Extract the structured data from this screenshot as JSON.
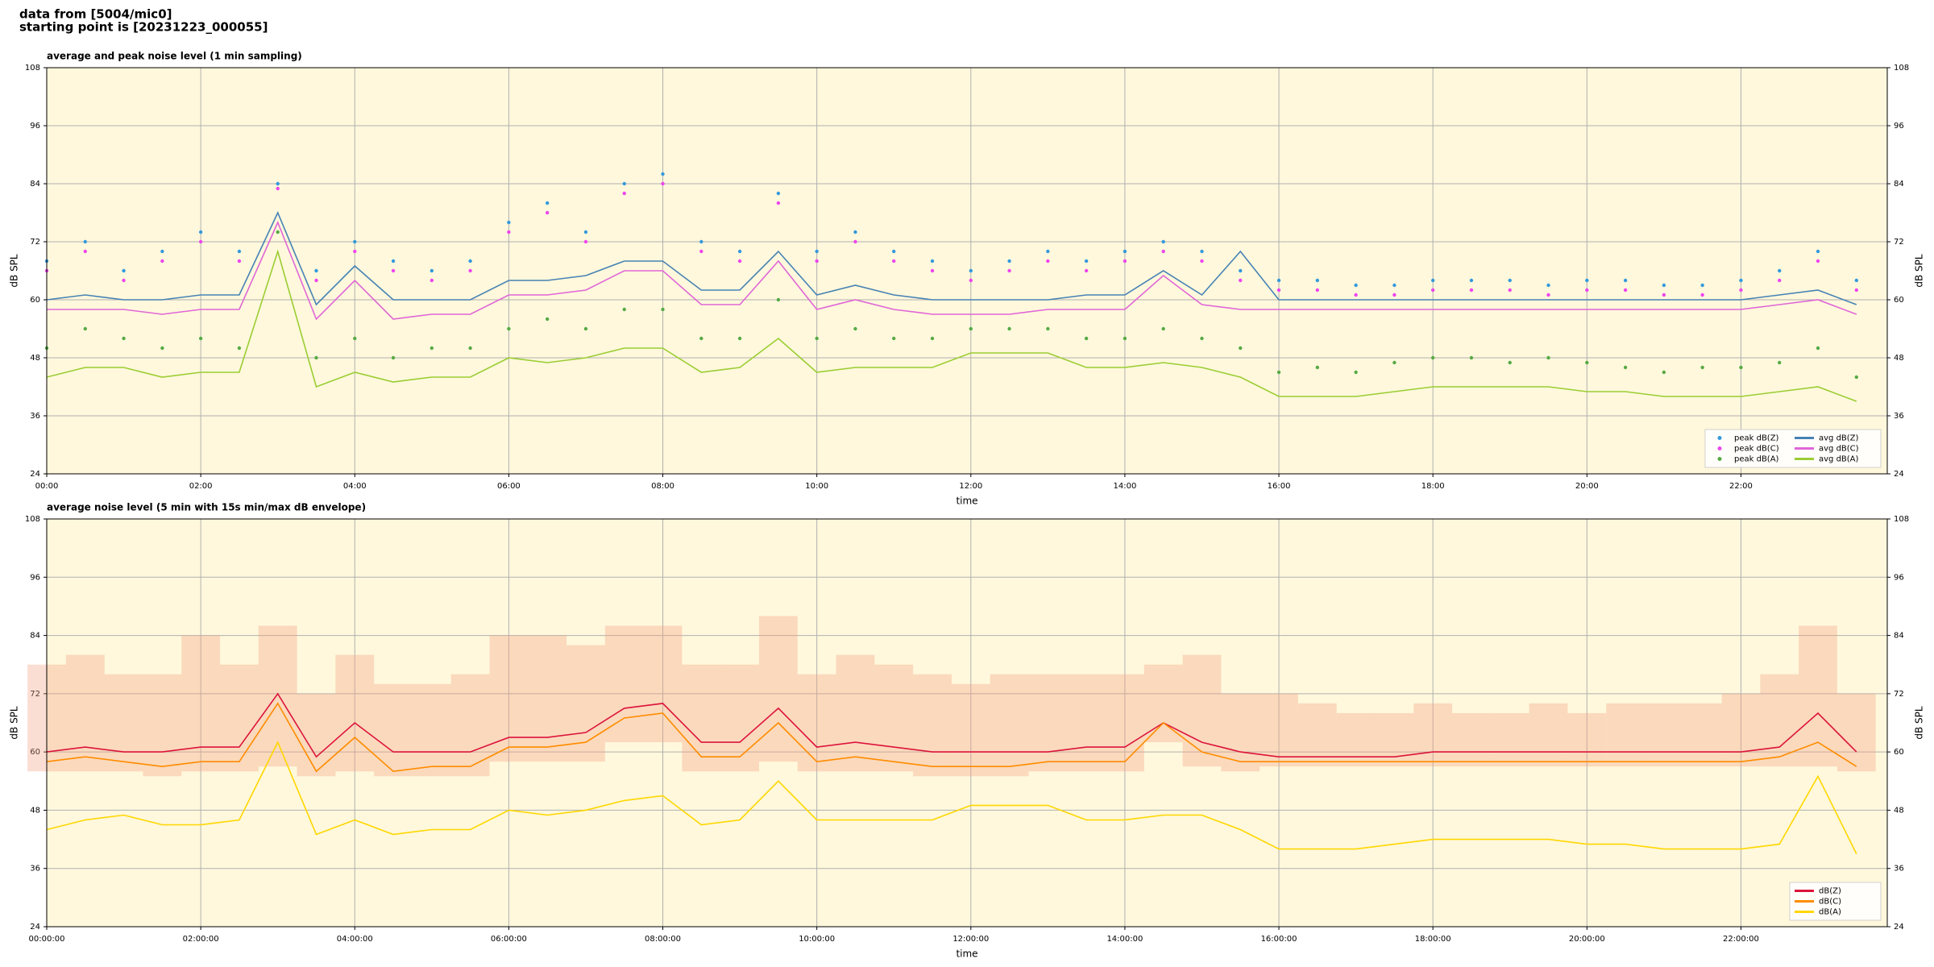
{
  "header": {
    "lines": [
      "data from [5004/mic0]",
      "starting point is [20231223_000055]"
    ]
  },
  "chart_data": [
    {
      "type": "line",
      "title": "average and peak noise level (1 min sampling)",
      "x_label": "time",
      "y_label": "dB SPL",
      "xlim": [
        0,
        23.9
      ],
      "ylim": [
        24,
        108
      ],
      "yticks": [
        24,
        36,
        48,
        60,
        72,
        84,
        96,
        108
      ],
      "xticks": [
        {
          "value": 0,
          "label": "00:00"
        },
        {
          "value": 2,
          "label": "02:00"
        },
        {
          "value": 4,
          "label": "04:00"
        },
        {
          "value": 6,
          "label": "06:00"
        },
        {
          "value": 8,
          "label": "08:00"
        },
        {
          "value": 10,
          "label": "10:00"
        },
        {
          "value": 12,
          "label": "12:00"
        },
        {
          "value": 14,
          "label": "14:00"
        },
        {
          "value": 16,
          "label": "16:00"
        },
        {
          "value": 18,
          "label": "18:00"
        },
        {
          "value": 20,
          "label": "20:00"
        },
        {
          "value": 22,
          "label": "22:00"
        }
      ],
      "grid": true,
      "background": "#fff8dc",
      "legend": "lower right",
      "legend_columns": 2,
      "x": [
        0,
        0.5,
        1,
        1.5,
        2,
        2.5,
        3,
        3.5,
        4,
        4.5,
        5,
        5.5,
        6,
        6.5,
        7,
        7.5,
        8,
        8.5,
        9,
        9.5,
        10,
        10.5,
        11,
        11.5,
        12,
        12.5,
        13,
        13.5,
        14,
        14.5,
        15,
        15.5,
        16,
        16.5,
        17,
        17.5,
        18,
        18.5,
        19,
        19.5,
        20,
        20.5,
        21,
        21.5,
        22,
        22.5,
        23,
        23.5
      ],
      "series": [
        {
          "name": "peak dB(Z)",
          "type": "scatter",
          "color": "#3399dd",
          "values": [
            68,
            72,
            66,
            70,
            74,
            70,
            84,
            66,
            72,
            68,
            66,
            68,
            76,
            80,
            74,
            84,
            86,
            72,
            70,
            82,
            70,
            74,
            70,
            68,
            66,
            68,
            70,
            68,
            70,
            72,
            70,
            66,
            64,
            64,
            63,
            63,
            64,
            64,
            64,
            63,
            64,
            64,
            63,
            63,
            64,
            66,
            70,
            64
          ]
        },
        {
          "name": "peak dB(C)",
          "type": "scatter",
          "color": "#ee44ee",
          "values": [
            66,
            70,
            64,
            68,
            72,
            68,
            83,
            64,
            70,
            66,
            64,
            66,
            74,
            78,
            72,
            82,
            84,
            70,
            68,
            80,
            68,
            72,
            68,
            66,
            64,
            66,
            68,
            66,
            68,
            70,
            68,
            64,
            62,
            62,
            61,
            61,
            62,
            62,
            62,
            61,
            62,
            62,
            61,
            61,
            62,
            64,
            68,
            62
          ]
        },
        {
          "name": "peak dB(A)",
          "type": "scatter",
          "color": "#55aa44",
          "values": [
            50,
            54,
            52,
            50,
            52,
            50,
            74,
            48,
            52,
            48,
            50,
            50,
            54,
            56,
            54,
            58,
            58,
            52,
            52,
            60,
            52,
            54,
            52,
            52,
            54,
            54,
            54,
            52,
            52,
            54,
            52,
            50,
            45,
            46,
            45,
            47,
            48,
            48,
            47,
            48,
            47,
            46,
            45,
            46,
            46,
            47,
            50,
            44
          ]
        },
        {
          "name": "avg dB(Z)",
          "type": "line",
          "color": "#4682b4",
          "values": [
            60,
            61,
            60,
            60,
            61,
            61,
            78,
            59,
            67,
            60,
            60,
            60,
            64,
            64,
            65,
            68,
            68,
            62,
            62,
            70,
            61,
            63,
            61,
            60,
            60,
            60,
            60,
            61,
            61,
            66,
            61,
            70,
            60,
            60,
            60,
            60,
            60,
            60,
            60,
            60,
            60,
            60,
            60,
            60,
            60,
            61,
            62,
            59
          ]
        },
        {
          "name": "avg dB(C)",
          "type": "line",
          "color": "#e066d8",
          "values": [
            58,
            58,
            58,
            57,
            58,
            58,
            76,
            56,
            64,
            56,
            57,
            57,
            61,
            61,
            62,
            66,
            66,
            59,
            59,
            68,
            58,
            60,
            58,
            57,
            57,
            57,
            58,
            58,
            58,
            65,
            59,
            58,
            58,
            58,
            58,
            58,
            58,
            58,
            58,
            58,
            58,
            58,
            58,
            58,
            58,
            59,
            60,
            57
          ]
        },
        {
          "name": "avg dB(A)",
          "type": "line",
          "color": "#9acd32",
          "values": [
            44,
            46,
            46,
            44,
            45,
            45,
            70,
            42,
            45,
            43,
            44,
            44,
            48,
            47,
            48,
            50,
            50,
            45,
            46,
            52,
            45,
            46,
            46,
            46,
            49,
            49,
            49,
            46,
            46,
            47,
            46,
            44,
            40,
            40,
            40,
            41,
            42,
            42,
            42,
            42,
            41,
            41,
            40,
            40,
            40,
            41,
            42,
            39
          ]
        }
      ]
    },
    {
      "type": "line",
      "title": "average noise level (5 min with 15s min/max dB envelope)",
      "x_label": "time",
      "y_label": "dB SPL",
      "xlim": [
        0,
        23.9
      ],
      "ylim": [
        24,
        108
      ],
      "yticks": [
        24,
        36,
        48,
        60,
        72,
        84,
        96,
        108
      ],
      "xticks": [
        {
          "value": 0,
          "label": "00:00:00"
        },
        {
          "value": 2,
          "label": "02:00:00"
        },
        {
          "value": 4,
          "label": "04:00:00"
        },
        {
          "value": 6,
          "label": "06:00:00"
        },
        {
          "value": 8,
          "label": "08:00:00"
        },
        {
          "value": 10,
          "label": "10:00:00"
        },
        {
          "value": 12,
          "label": "12:00:00"
        },
        {
          "value": 14,
          "label": "14:00:00"
        },
        {
          "value": 16,
          "label": "16:00:00"
        },
        {
          "value": 18,
          "label": "18:00:00"
        },
        {
          "value": 20,
          "label": "20:00:00"
        },
        {
          "value": 22,
          "label": "22:00:00"
        }
      ],
      "grid": true,
      "background": "#fff8dc",
      "legend": "lower right",
      "legend_columns": 1,
      "x": [
        0,
        0.5,
        1,
        1.5,
        2,
        2.5,
        3,
        3.5,
        4,
        4.5,
        5,
        5.5,
        6,
        6.5,
        7,
        7.5,
        8,
        8.5,
        9,
        9.5,
        10,
        10.5,
        11,
        11.5,
        12,
        12.5,
        13,
        13.5,
        14,
        14.5,
        15,
        15.5,
        16,
        16.5,
        17,
        17.5,
        18,
        18.5,
        19,
        19.5,
        20,
        20.5,
        21,
        21.5,
        22,
        22.5,
        23,
        23.5
      ],
      "envelope": {
        "color": "#f4a080",
        "low": [
          56,
          56,
          56,
          55,
          56,
          56,
          57,
          55,
          56,
          55,
          55,
          55,
          58,
          58,
          58,
          62,
          62,
          56,
          56,
          58,
          56,
          56,
          56,
          55,
          55,
          55,
          56,
          56,
          56,
          62,
          57,
          56,
          57,
          57,
          57,
          57,
          57,
          57,
          57,
          57,
          57,
          57,
          57,
          57,
          57,
          57,
          57,
          56
        ],
        "high": [
          78,
          80,
          76,
          76,
          84,
          78,
          86,
          72,
          80,
          74,
          74,
          76,
          84,
          84,
          82,
          86,
          86,
          78,
          78,
          88,
          76,
          80,
          78,
          76,
          74,
          76,
          76,
          76,
          76,
          78,
          80,
          72,
          72,
          70,
          68,
          68,
          70,
          68,
          68,
          70,
          68,
          70,
          70,
          70,
          72,
          76,
          86,
          72
        ]
      },
      "series": [
        {
          "name": "dB(Z)",
          "type": "line",
          "color": "#dc143c",
          "values": [
            60,
            61,
            60,
            60,
            61,
            61,
            72,
            59,
            66,
            60,
            60,
            60,
            63,
            63,
            64,
            69,
            70,
            62,
            62,
            69,
            61,
            62,
            61,
            60,
            60,
            60,
            60,
            61,
            61,
            66,
            62,
            60,
            59,
            59,
            59,
            59,
            60,
            60,
            60,
            60,
            60,
            60,
            60,
            60,
            60,
            61,
            68,
            60
          ]
        },
        {
          "name": "dB(C)",
          "type": "line",
          "color": "#ff8c00",
          "values": [
            58,
            59,
            58,
            57,
            58,
            58,
            70,
            56,
            63,
            56,
            57,
            57,
            61,
            61,
            62,
            67,
            68,
            59,
            59,
            66,
            58,
            59,
            58,
            57,
            57,
            57,
            58,
            58,
            58,
            66,
            60,
            58,
            58,
            58,
            58,
            58,
            58,
            58,
            58,
            58,
            58,
            58,
            58,
            58,
            58,
            59,
            62,
            57
          ]
        },
        {
          "name": "dB(A)",
          "type": "line",
          "color": "#ffd700",
          "values": [
            44,
            46,
            47,
            45,
            45,
            46,
            62,
            43,
            46,
            43,
            44,
            44,
            48,
            47,
            48,
            50,
            51,
            45,
            46,
            54,
            46,
            46,
            46,
            46,
            49,
            49,
            49,
            46,
            46,
            47,
            47,
            44,
            40,
            40,
            40,
            41,
            42,
            42,
            42,
            42,
            41,
            41,
            40,
            40,
            40,
            41,
            55,
            39
          ]
        }
      ]
    }
  ]
}
